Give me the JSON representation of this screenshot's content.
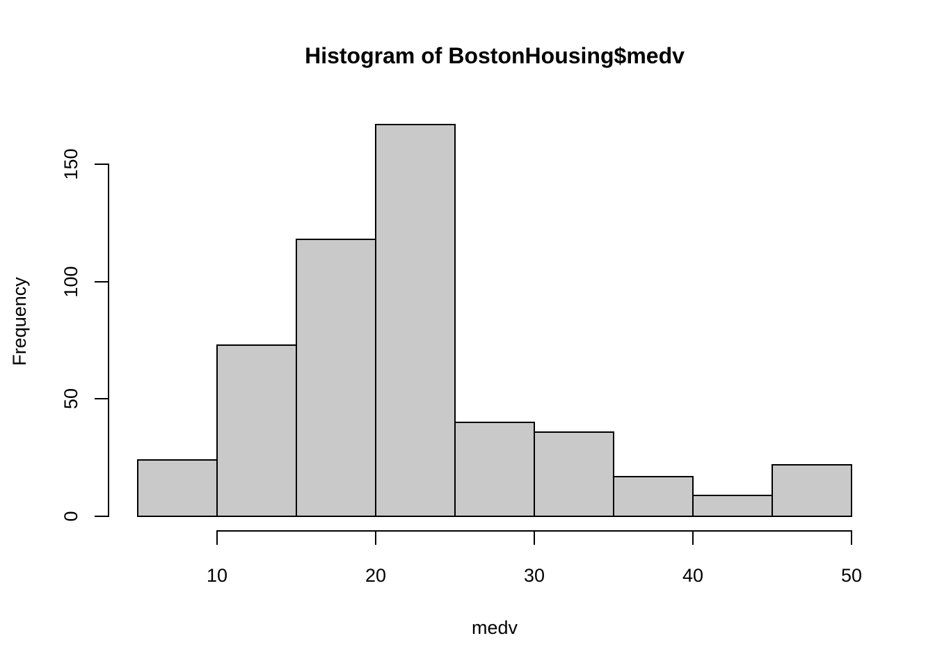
{
  "chart_data": {
    "type": "bar",
    "subtype": "histogram",
    "title": "Histogram of BostonHousing$medv",
    "xlabel": "medv",
    "ylabel": "Frequency",
    "bin_edges": [
      5,
      10,
      15,
      20,
      25,
      30,
      35,
      40,
      45,
      50
    ],
    "counts": [
      24,
      73,
      118,
      167,
      40,
      36,
      17,
      9,
      22
    ],
    "x_ticks": [
      10,
      20,
      30,
      40,
      50
    ],
    "y_ticks": [
      0,
      50,
      100,
      150
    ],
    "xlim": [
      5,
      50
    ],
    "ylim": [
      0,
      167
    ],
    "grid": false,
    "legend": null,
    "colors": {
      "bar_fill": "#c9c9c9",
      "bar_stroke": "#000000",
      "axis": "#000000",
      "text": "#000000",
      "background": "#ffffff"
    }
  }
}
